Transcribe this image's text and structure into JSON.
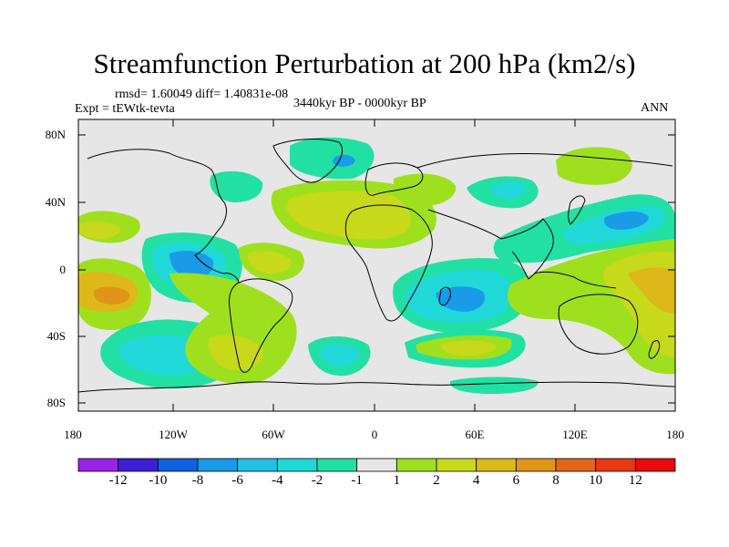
{
  "title": "Streamfunction Perturbation at 200 hPa (km2/s)",
  "stats": "rmsd= 1.60049 diff= 1.40831e-08",
  "experiment": "Expt = tEWtk-tevta",
  "period": "3440kyr BP - 0000kyr BP",
  "season": "ANN",
  "axes": {
    "lat_labels": [
      "80N",
      "40N",
      "0",
      "40S",
      "80S"
    ],
    "lon_labels": [
      "180",
      "120W",
      "60W",
      "0",
      "60E",
      "120E",
      "180"
    ]
  },
  "colorbar": {
    "labels": [
      "-12",
      "-10",
      "-8",
      "-6",
      "-4",
      "-2",
      "-1",
      "1",
      "2",
      "4",
      "6",
      "8",
      "10",
      "12"
    ],
    "colors": [
      "#9a22e6",
      "#3b1fd8",
      "#1060e0",
      "#1a9be8",
      "#22bfe6",
      "#20d8d8",
      "#22e0a4",
      "#e6e6e6",
      "#9ee01e",
      "#c8d81a",
      "#dcb818",
      "#e09418",
      "#e46418",
      "#e83814",
      "#e80c0c"
    ]
  },
  "colors": {
    "land_outline": "#000000",
    "neutral": "#e6e6e6",
    "teal": "#22e0a4",
    "lightblue": "#20d8d8",
    "blue": "#1a9be8",
    "green": "#9ee01e",
    "olive": "#c8d81a",
    "orange": "#dcb818",
    "darkorange": "#e09418"
  }
}
